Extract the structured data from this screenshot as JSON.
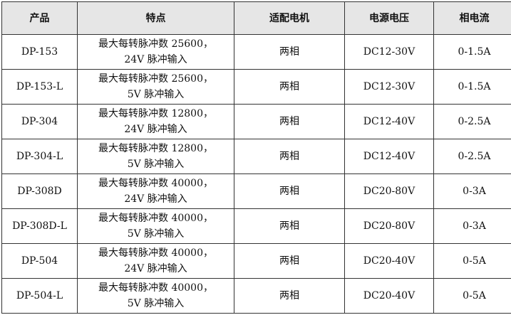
{
  "headers": [
    "产品",
    "特点",
    "适配电机",
    "电源电压",
    "相电流"
  ],
  "rows": [
    {
      "product": "DP-153",
      "feature1": "最大每转脉冲数 25600，",
      "feature2": "24V 脉冲输入",
      "motor": "两相",
      "voltage": "DC12-30V",
      "current": "0-1.5A"
    },
    {
      "product": "DP-153-L",
      "feature1": "最大每转脉冲数 25600，",
      "feature2": "5V 脉冲输入",
      "motor": "两相",
      "voltage": "DC12-30V",
      "current": "0-1.5A"
    },
    {
      "product": "DP-304",
      "feature1": "最大每转脉冲数 12800，",
      "feature2": "24V 脉冲输入",
      "motor": "两相",
      "voltage": "DC12-40V",
      "current": "0-2.5A"
    },
    {
      "product": "DP-304-L",
      "feature1": "最大每转脉冲数 12800，",
      "feature2": "5V 脉冲输入",
      "motor": "两相",
      "voltage": "DC12-40V",
      "current": "0-2.5A"
    },
    {
      "product": "DP-308D",
      "feature1": "最大每转脉冲数 40000，",
      "feature2": "24V 脉冲输入",
      "motor": "两相",
      "voltage": "DC20-80V",
      "current": "0-3A"
    },
    {
      "product": "DP-308D-L",
      "feature1": "最大每转脉冲数 40000，",
      "feature2": "5V 脉冲输入",
      "motor": "两相",
      "voltage": "DC20-80V",
      "current": "0-3A"
    },
    {
      "product": "DP-504",
      "feature1": "最大每转脉冲数 40000，",
      "feature2": "24V 脉冲输入",
      "motor": "两相",
      "voltage": "DC20-40V",
      "current": "0-5A"
    },
    {
      "product": "DP-504-L",
      "feature1": "最大每转脉冲数 40000，",
      "feature2": "5V 脉冲输入",
      "motor": "两相",
      "voltage": "DC20-40V",
      "current": "0-5A"
    }
  ]
}
